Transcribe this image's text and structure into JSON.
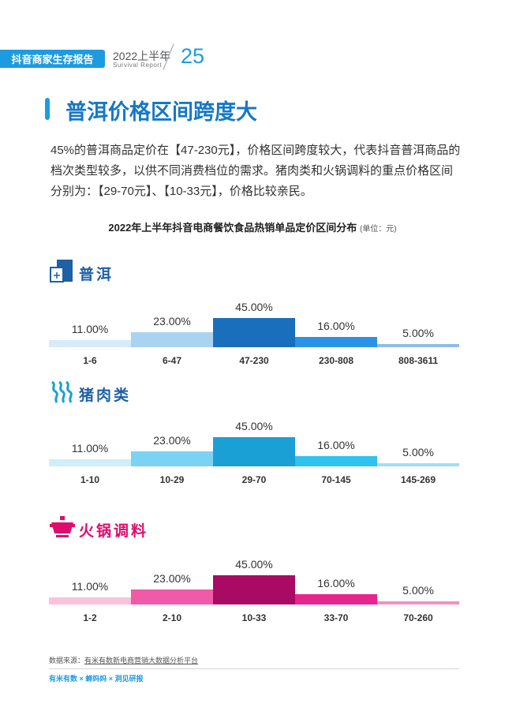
{
  "header": {
    "report_name": "抖音商家生存报告",
    "year": "2022上半年",
    "subtitle": "Survival Report",
    "page_number": "25"
  },
  "title": "普洱价格区间跨度大",
  "paragraph": "45%的普洱商品定价在【47-230元】，价格区间跨度较大，代表抖音普洱商品的档次类型较多，以供不同消费档位的需求。猪肉类和火锅调料的重点价格区间分别为：【29-70元】、【10-33元】，价格比较亲民。",
  "chart_data": [
    {
      "type": "bar",
      "title": "2022年上半年抖音电商餐饮食品热销单品定价区间分布",
      "unit": "(单位：元)",
      "section": "普洱",
      "categories": [
        "1-6",
        "6-47",
        "47-230",
        "230-808",
        "808-3611"
      ],
      "values": [
        11.0,
        23.0,
        45.0,
        16.0,
        5.0
      ],
      "labels": [
        "11.00%",
        "23.00%",
        "45.00%",
        "16.00%",
        "5.00%"
      ],
      "colors": [
        "#d6ebf8",
        "#a9d4f1",
        "#1a6fbd",
        "#2b93e6",
        "#8dbde6"
      ]
    },
    {
      "type": "bar",
      "section": "猪肉类",
      "categories": [
        "1-10",
        "10-29",
        "29-70",
        "70-145",
        "145-269"
      ],
      "values": [
        11.0,
        23.0,
        45.0,
        16.0,
        5.0
      ],
      "labels": [
        "11.00%",
        "23.00%",
        "45.00%",
        "16.00%",
        "5.00%"
      ],
      "colors": [
        "#cfeefb",
        "#7cd2f2",
        "#1aa0d4",
        "#2fc3ef",
        "#a3ddf3"
      ]
    },
    {
      "type": "bar",
      "section": "火锅调料",
      "categories": [
        "1-2",
        "2-10",
        "10-33",
        "33-70",
        "70-260"
      ],
      "values": [
        11.0,
        23.0,
        45.0,
        16.0,
        5.0
      ],
      "labels": [
        "11.00%",
        "23.00%",
        "45.00%",
        "16.00%",
        "5.00%"
      ],
      "colors": [
        "#f9c3dc",
        "#ef5aa9",
        "#a80a64",
        "#e8248f",
        "#f091c2"
      ]
    }
  ],
  "sections": {
    "puer": {
      "name": "普洱",
      "color": "#1e5fa6"
    },
    "pork": {
      "name": "猪肉类",
      "color": "#1aa0d4"
    },
    "hotpot": {
      "name": "火锅调料",
      "color": "#e00b6e"
    }
  },
  "source": {
    "label": "数据来源：",
    "text": "有米有数新电商营销大数据分析平台"
  },
  "footer_logos": "有米有数 × 蝉妈妈 × 洞见研报"
}
